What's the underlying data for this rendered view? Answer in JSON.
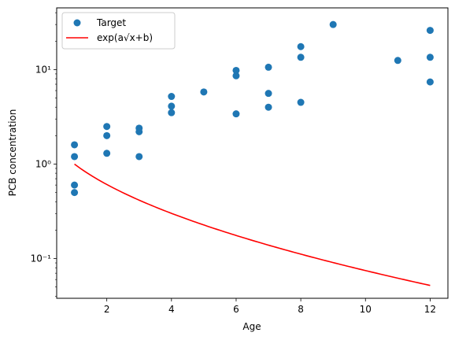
{
  "chart_data": {
    "type": "scatter",
    "xlabel": "Age",
    "ylabel": "PCB concentration",
    "xlim": [
      0.45,
      12.55
    ],
    "ylim": [
      0.038,
      45
    ],
    "yscale": "log",
    "grid": false,
    "legend_position": "top-left",
    "x_ticks": [
      2,
      4,
      6,
      8,
      10,
      12
    ],
    "x_tick_labels": [
      "2",
      "4",
      "6",
      "8",
      "10",
      "12"
    ],
    "y_ticks": [
      0.1,
      1,
      10
    ],
    "y_tick_labels": [
      "10⁻¹",
      "10⁰",
      "10¹"
    ],
    "series": [
      {
        "name": "Target",
        "kind": "scatter",
        "color": "#1f77b4",
        "points": [
          {
            "x": 1,
            "y": 1.6
          },
          {
            "x": 1,
            "y": 1.2
          },
          {
            "x": 1,
            "y": 0.6
          },
          {
            "x": 1,
            "y": 0.5
          },
          {
            "x": 2,
            "y": 2.5
          },
          {
            "x": 2,
            "y": 2.0
          },
          {
            "x": 2,
            "y": 1.3
          },
          {
            "x": 3,
            "y": 2.4
          },
          {
            "x": 3,
            "y": 2.2
          },
          {
            "x": 3,
            "y": 1.2
          },
          {
            "x": 4,
            "y": 5.2
          },
          {
            "x": 4,
            "y": 4.1
          },
          {
            "x": 4,
            "y": 3.5
          },
          {
            "x": 5,
            "y": 5.8
          },
          {
            "x": 6,
            "y": 9.8
          },
          {
            "x": 6,
            "y": 8.6
          },
          {
            "x": 6,
            "y": 3.4
          },
          {
            "x": 7,
            "y": 10.6
          },
          {
            "x": 7,
            "y": 5.6
          },
          {
            "x": 7,
            "y": 4.0
          },
          {
            "x": 8,
            "y": 17.5
          },
          {
            "x": 8,
            "y": 13.5
          },
          {
            "x": 8,
            "y": 4.5
          },
          {
            "x": 9,
            "y": 30.0
          },
          {
            "x": 11,
            "y": 12.5
          },
          {
            "x": 12,
            "y": 26.0
          },
          {
            "x": 12,
            "y": 13.5
          },
          {
            "x": 12,
            "y": 7.4
          }
        ]
      },
      {
        "name": "exp(a√x+b)",
        "kind": "line",
        "color": "#ff0000",
        "function": {
          "a": -1.2,
          "b": 1.2,
          "x_start": 1,
          "x_end": 12
        }
      }
    ]
  }
}
